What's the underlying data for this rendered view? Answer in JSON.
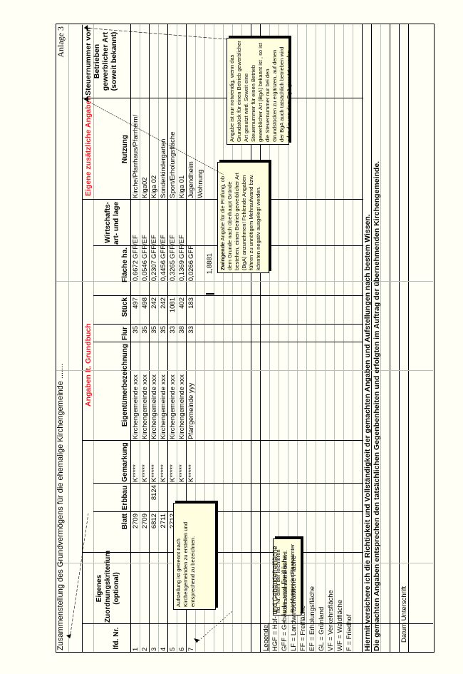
{
  "document": {
    "title": "Zusammenstellung des Grundvermögens für die ehemalige Kirchengemeinde .......",
    "anlage": "Anlage 3",
    "section_grundbuch": "Angaben lt. Grundbuch",
    "section_eigene": "Eigene zusätzliche Angaben",
    "accent_color": "#e8202a"
  },
  "columns": {
    "lfd": "lfd. Nr.",
    "zuordnung": "Eigenes Zuordnungskriterium (optional)",
    "blatt": "Blatt",
    "erbbau": "Erbbau",
    "gemarkung": "Gemarkung",
    "eigentuemer": "Eigentümerbezeichnung",
    "flur": "Flur",
    "stueck": "Stück",
    "flaeche": "Fläche ha.",
    "wirtschaft": "Wirtschafts- art- und lage",
    "nutzung": "Nutzung",
    "steuernummer": "Steuernummer von Betrieben gewerblicher Art (soweit bekannt)"
  },
  "rows": [
    {
      "nr": "1",
      "blatt": "2709",
      "erbbau": "",
      "gemarkung": "K*****",
      "eigentuemer": "Kirchengemeinde xxx",
      "flur": "35",
      "stueck": "497",
      "flaeche": "0,6672",
      "wirtschaft": "GFF/EF",
      "nutzung": "Kirche/Pfarrhaus/Pfarrheim/"
    },
    {
      "nr": "2",
      "blatt": "2709",
      "erbbau": "",
      "gemarkung": "K*****",
      "eigentuemer": "Kirchengemeinde xxx",
      "flur": "35",
      "stueck": "498",
      "flaeche": "0,0546",
      "wirtschaft": "GFF/EF",
      "nutzung": "Kiga02"
    },
    {
      "nr": "3",
      "blatt": "6812",
      "erbbau": "8124",
      "gemarkung": "K*****",
      "eigentuemer": "Kirchengemeinde xxx",
      "flur": "35",
      "stueck": "242",
      "flaeche": "0,2307",
      "wirtschaft": "GFF/EF",
      "nutzung": "Kiga 02"
    },
    {
      "nr": "4",
      "blatt": "2711",
      "erbbau": "",
      "gemarkung": "K*****",
      "eigentuemer": "Kirchengemeinde xxx",
      "flur": "35",
      "stueck": "242",
      "flaeche": "0,4456",
      "wirtschaft": "GFF/EF",
      "nutzung": "Sonderkindergarten"
    },
    {
      "nr": "5",
      "blatt": "2712",
      "erbbau": "",
      "gemarkung": "K*****",
      "eigentuemer": "Kirchengemeinde xxx",
      "flur": "33",
      "stueck": "1081",
      "flaeche": "0,3265",
      "wirtschaft": "GFF/EF",
      "nutzung": "Sport/Erholungsfläche"
    },
    {
      "nr": "6",
      "blatt": "2713",
      "erbbau": "",
      "gemarkung": "K*****",
      "eigentuemer": "Kirchengemeinde xxx",
      "flur": "38",
      "stueck": "402",
      "flaeche": "0,1369",
      "wirtschaft": "GFF/EF",
      "nutzung": "Kiga 01"
    },
    {
      "nr": "7",
      "blatt": "1690",
      "erbbau": "",
      "gemarkung": "K*****",
      "eigentuemer": "Pfarrgemeinde yyy",
      "flur": "33",
      "stueck": "183",
      "flaeche": "0,0266",
      "wirtschaft": "GFF",
      "nutzung": "Jugendheim"
    }
  ],
  "extra_nutzung": "Wohnung",
  "total_flaeche": "1,8881",
  "notes": {
    "aufstellung": "Aufstellung ist getrennt nach Kirchengemeinden zu erstellen und entsprechend zu bezeichnen.",
    "lfd": "lfd. Nr. dient der leichteren Kontaktaufnahme bei evtl. Rückfragen der Finanzämter",
    "zwingend_bold": "Zwingende",
    "zwingend": " Angabe für die Prüfung, ob dem Grunde nach überhaupt Gründe bestehen, einen Betrieb gewerblicher Art (BgA) anzunehmen! Fehlende Angaben führen zu unnötigem Mehraufwand bzw. könnten negativ ausgelegt werden.",
    "steuer": "Angabe ist nur notwendig, wenn das Grundstück für einen Betrieb gewerblicher Art genutzt wird. Soweit eine Steuernummer für einen Betrieb gewerblicher Art (BgA) bekannt ist , so ist die Steuernummer nur bei den Grundstücken zu ergänzen, auf denen der BgA auch tatsächlich betrieben wird oder die von dem BgA genutzt werden."
  },
  "legend": {
    "title": "Legende:",
    "items": [
      "HGF = Hof- und Gebäudefreifläche",
      "GFF = Gebäude- und Freifläche",
      "LF = Landwirtschaftliche Fläche",
      "FF = Freifläche",
      "EF = Erholungsfläche",
      "GL = Grünland",
      "VF = Verkehrsfläche",
      "WF = Waldfläche",
      "F = Friedhof"
    ]
  },
  "footer": {
    "line1": "Hiermit versichere ich die Richtigkeit und Vollständigkeit der gemachten Angaben und Aufstellungen nach bestem Wissen.",
    "line2": "Die gemachten Angaben entsprechen den tatsächlichen Gegenbenheiten und erfolgten im Auftrag der übernehmenden Kirchengemeinde.",
    "signature": "Datum Unterschrift"
  }
}
